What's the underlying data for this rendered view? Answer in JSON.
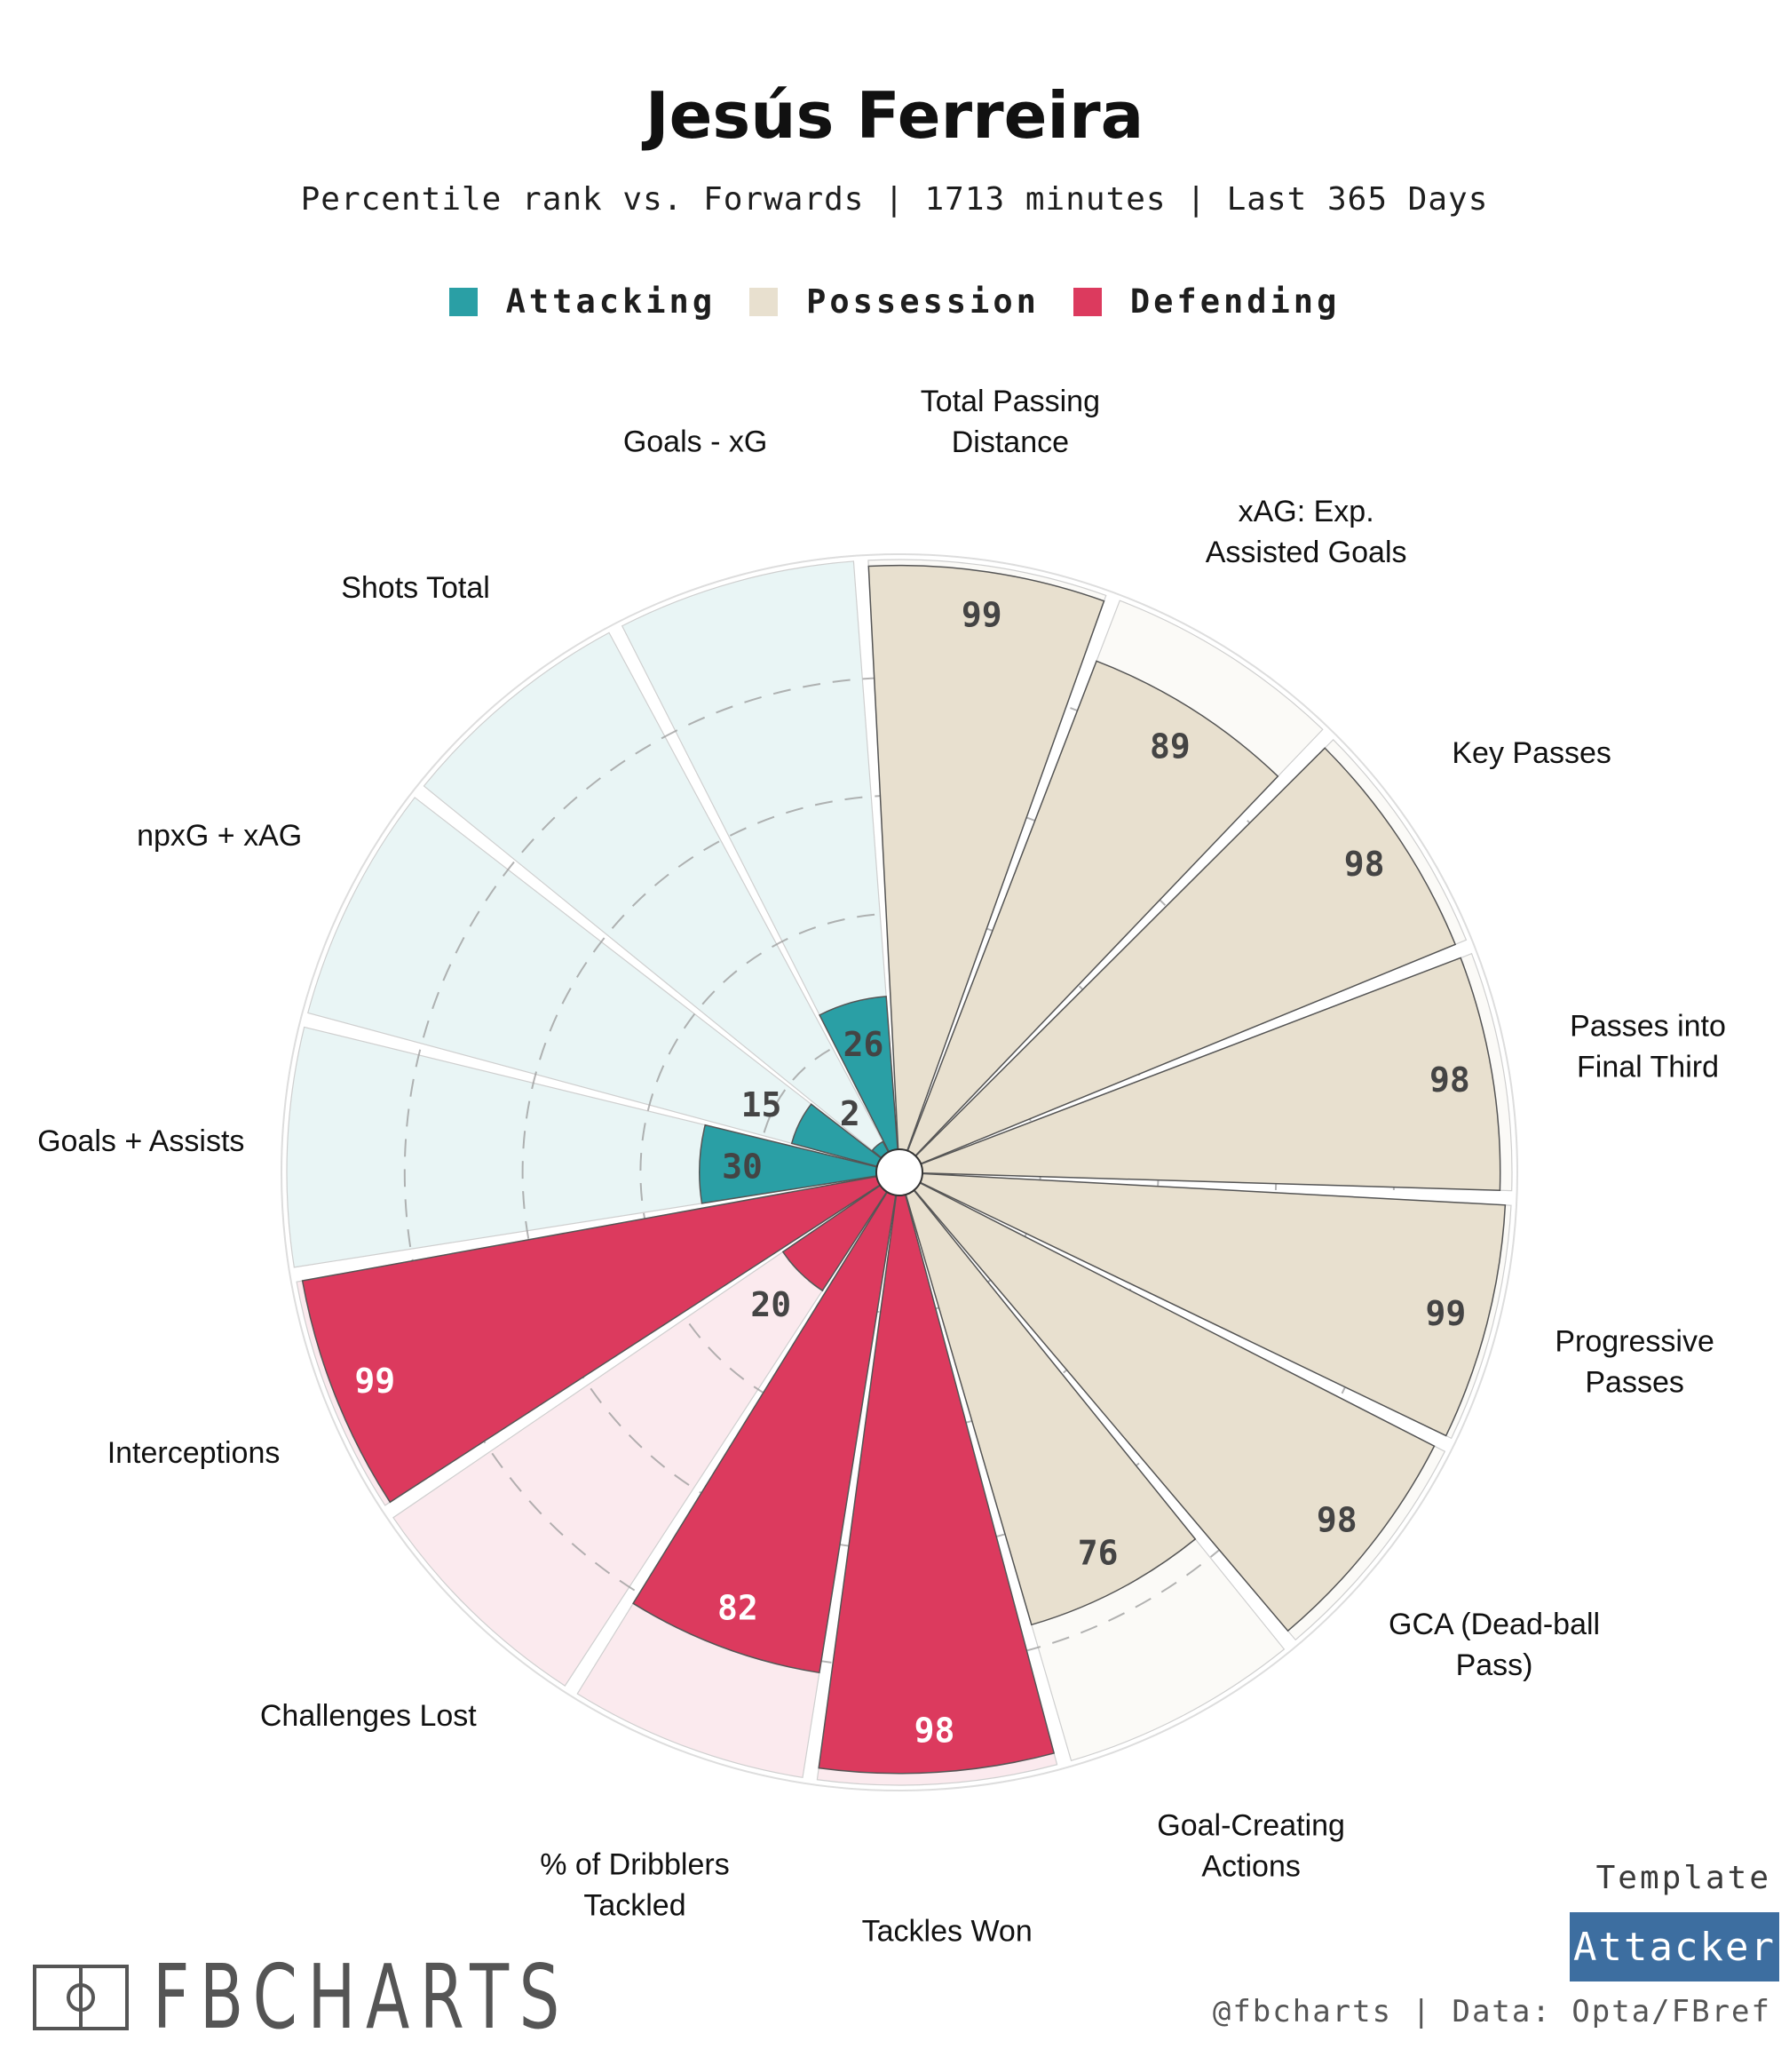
{
  "header": {
    "title": "Jesús Ferreira",
    "subtitle": "Percentile rank vs. Forwards | 1713 minutes | Last 365 Days"
  },
  "legend": [
    {
      "label": "Attacking",
      "color": "#2a9fa5"
    },
    {
      "label": "Possession",
      "color": "#e8e0cf"
    },
    {
      "label": "Defending",
      "color": "#dc3a5e"
    }
  ],
  "footer": {
    "template_label": "Template",
    "template_name": "Attacker",
    "credit": "@fbcharts | Data: Opta/FBref",
    "logo_text": "FBCHARTS"
  },
  "chart_data": {
    "type": "radial-bar",
    "rlim": [
      0,
      100
    ],
    "grid_rings": [
      20,
      40,
      60,
      80
    ],
    "categories": [
      {
        "label": "Total Passing Distance",
        "value": 99,
        "group": "Possession"
      },
      {
        "label": "xAG: Exp. Assisted Goals",
        "value": 89,
        "group": "Possession"
      },
      {
        "label": "Key Passes",
        "value": 98,
        "group": "Possession"
      },
      {
        "label": "Passes into Final Third",
        "value": 98,
        "group": "Possession"
      },
      {
        "label": "Progressive Passes",
        "value": 99,
        "group": "Possession"
      },
      {
        "label": "GCA (Dead-ball Pass)",
        "value": 98,
        "group": "Possession"
      },
      {
        "label": "Goal-Creating Actions",
        "value": 76,
        "group": "Possession"
      },
      {
        "label": "Tackles Won",
        "value": 98,
        "group": "Defending"
      },
      {
        "label": "% of Dribblers Tackled",
        "value": 82,
        "group": "Defending"
      },
      {
        "label": "Challenges Lost",
        "value": 20,
        "group": "Defending"
      },
      {
        "label": "Interceptions",
        "value": 99,
        "group": "Defending"
      },
      {
        "label": "Goals + Assists",
        "value": 30,
        "group": "Attacking"
      },
      {
        "label": "npxG + xAG",
        "value": 15,
        "group": "Attacking"
      },
      {
        "label": "Shots Total",
        "value": 2,
        "group": "Attacking"
      },
      {
        "label": "Goals - xG",
        "value": 26,
        "group": "Attacking"
      }
    ],
    "colors": {
      "Attacking": {
        "bar": "#2a9fa5",
        "bg": "#e9f5f5"
      },
      "Possession": {
        "bar": "#e8e0cf",
        "bg": "#fbfaf7"
      },
      "Defending": {
        "bar": "#dc3a5e",
        "bg": "#fbeaee"
      }
    }
  }
}
